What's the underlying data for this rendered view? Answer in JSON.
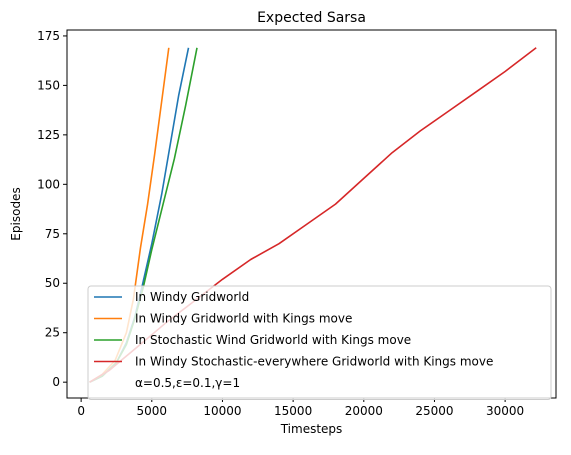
{
  "chart_data": {
    "type": "line",
    "title": "Expected Sarsa",
    "xlabel": "Timesteps",
    "ylabel": "Episodes",
    "xlim": [
      -1000,
      33600
    ],
    "ylim": [
      -8,
      178
    ],
    "xticks": [
      0,
      5000,
      10000,
      15000,
      20000,
      25000,
      30000
    ],
    "xtick_labels": [
      "0",
      "5000",
      "10000",
      "15000",
      "20000",
      "25000",
      "30000"
    ],
    "yticks": [
      0,
      25,
      50,
      75,
      100,
      125,
      150,
      175
    ],
    "ytick_labels": [
      "0",
      "25",
      "50",
      "75",
      "100",
      "125",
      "150",
      "175"
    ],
    "grid": false,
    "legend_placement": "lower-right",
    "legend_note": "α=0.5,ε=0.1,γ=1",
    "series": [
      {
        "name": "In Windy Gridworld",
        "color": "#1f77b4",
        "x": [
          600,
          1500,
          2500,
          3200,
          3800,
          4300,
          5000,
          5700,
          6300,
          6900,
          7600
        ],
        "y": [
          0,
          3,
          10,
          20,
          33,
          48,
          70,
          95,
          120,
          145,
          169
        ]
      },
      {
        "name": "In Windy Gridworld with Kings move",
        "color": "#ff7f0e",
        "x": [
          600,
          1500,
          2400,
          3200,
          3700,
          4200,
          4700,
          5200,
          5700,
          6200
        ],
        "y": [
          0,
          4,
          11,
          25,
          42,
          68,
          90,
          115,
          142,
          169
        ]
      },
      {
        "name": "In Stochastic Wind Gridworld with Kings move",
        "color": "#2ca02c",
        "x": [
          600,
          1500,
          2500,
          3200,
          3800,
          4400,
          5000,
          5800,
          6600,
          7400,
          8200
        ],
        "y": [
          0,
          3,
          10,
          19,
          32,
          48,
          67,
          90,
          113,
          140,
          169
        ]
      },
      {
        "name": "In Windy Stochastic-everywhere Gridworld with Kings move",
        "color": "#d62728",
        "x": [
          600,
          2000,
          4000,
          6000,
          8000,
          10000,
          12000,
          14000,
          16000,
          18000,
          20000,
          22000,
          24000,
          26000,
          28000,
          30000,
          32200
        ],
        "y": [
          0,
          6,
          18,
          30,
          41,
          52,
          62,
          70,
          80,
          90,
          103,
          116,
          127,
          137,
          147,
          157,
          169
        ]
      }
    ]
  }
}
